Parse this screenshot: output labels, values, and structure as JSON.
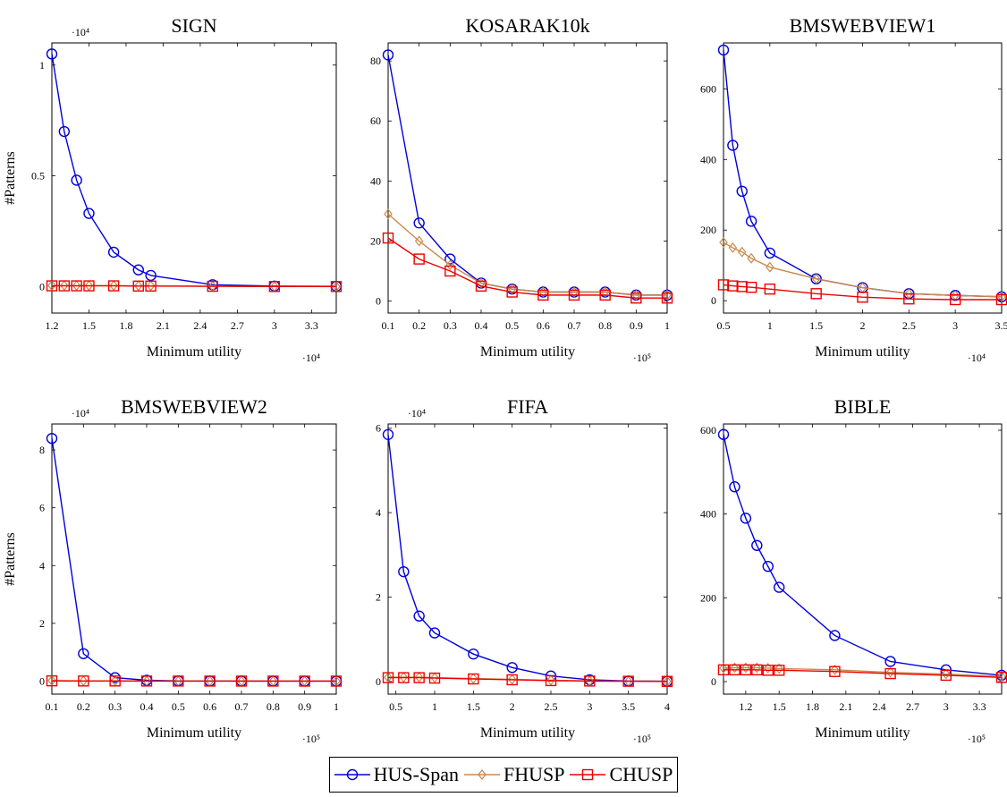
{
  "legend": {
    "items": [
      {
        "name": "HUS-Span",
        "color": "#0000dd",
        "marker": "circle"
      },
      {
        "name": "FHUSP",
        "color": "#c98a4b",
        "marker": "diamond"
      },
      {
        "name": "CHUSP",
        "color": "#ee0000",
        "marker": "square"
      }
    ]
  },
  "chart_data": [
    {
      "type": "line",
      "title": "SIGN",
      "xlabel": "Minimum utility",
      "ylabel": "#Patterns",
      "x_multiplier": "·10⁴",
      "y_multiplier": "·10⁴",
      "xlim": [
        1.2,
        3.5
      ],
      "ylim": [
        -0.12,
        1.1
      ],
      "xticks": [
        1.2,
        1.5,
        1.8,
        2.1,
        2.4,
        2.7,
        3,
        3.3
      ],
      "yticks": [
        0,
        0.5,
        1
      ],
      "series": [
        {
          "name": "HUS-Span",
          "x": [
            1.2,
            1.3,
            1.4,
            1.5,
            1.7,
            1.9,
            2.0,
            2.5,
            3.0,
            3.5
          ],
          "y": [
            1.05,
            0.7,
            0.48,
            0.33,
            0.155,
            0.075,
            0.05,
            0.008,
            0.002,
            0.001
          ]
        },
        {
          "name": "FHUSP",
          "x": [
            1.2,
            1.3,
            1.4,
            1.5,
            1.7,
            1.9,
            2.0,
            2.5,
            3.0,
            3.5
          ],
          "y": [
            0.004,
            0.004,
            0.004,
            0.004,
            0.004,
            0.003,
            0.003,
            0.001,
            0.0,
            0.0
          ]
        },
        {
          "name": "CHUSP",
          "x": [
            1.2,
            1.3,
            1.4,
            1.5,
            1.7,
            1.9,
            2.0,
            2.5,
            3.0,
            3.5
          ],
          "y": [
            0.003,
            0.003,
            0.003,
            0.003,
            0.003,
            0.002,
            0.002,
            0.001,
            0.0,
            0.0
          ]
        }
      ]
    },
    {
      "type": "line",
      "title": "KOSARAK10k",
      "xlabel": "Minimum utility",
      "ylabel": "",
      "x_multiplier": "·10⁵",
      "y_multiplier": "",
      "xlim": [
        0.1,
        1
      ],
      "ylim": [
        -4,
        86
      ],
      "xticks": [
        0.1,
        0.2,
        0.3,
        0.4,
        0.5,
        0.6,
        0.7,
        0.8,
        0.9,
        1
      ],
      "yticks": [
        0,
        20,
        40,
        60,
        80
      ],
      "series": [
        {
          "name": "HUS-Span",
          "x": [
            0.1,
            0.2,
            0.3,
            0.4,
            0.5,
            0.6,
            0.7,
            0.8,
            0.9,
            1.0
          ],
          "y": [
            82,
            26,
            14,
            6,
            4,
            3,
            3,
            3,
            2,
            2
          ]
        },
        {
          "name": "FHUSP",
          "x": [
            0.1,
            0.2,
            0.3,
            0.4,
            0.5,
            0.6,
            0.7,
            0.8,
            0.9,
            1.0
          ],
          "y": [
            29,
            20,
            12,
            6,
            4,
            3,
            3,
            3,
            2,
            2
          ]
        },
        {
          "name": "CHUSP",
          "x": [
            0.1,
            0.2,
            0.3,
            0.4,
            0.5,
            0.6,
            0.7,
            0.8,
            0.9,
            1.0
          ],
          "y": [
            21,
            14,
            10,
            5,
            3,
            2,
            2,
            2,
            1,
            1
          ]
        }
      ]
    },
    {
      "type": "line",
      "title": "BMSWEBVIEW1",
      "xlabel": "Minimum utility",
      "ylabel": "",
      "x_multiplier": "·10⁴",
      "y_multiplier": "",
      "xlim": [
        0.5,
        3.5
      ],
      "ylim": [
        -35,
        730
      ],
      "xticks": [
        0.5,
        1,
        1.5,
        2,
        2.5,
        3,
        3.5
      ],
      "yticks": [
        0,
        200,
        400,
        600
      ],
      "series": [
        {
          "name": "HUS-Span",
          "x": [
            0.5,
            0.6,
            0.7,
            0.8,
            1.0,
            1.5,
            2.0,
            2.5,
            3.0,
            3.5
          ],
          "y": [
            710,
            440,
            310,
            225,
            135,
            62,
            37,
            20,
            15,
            11
          ]
        },
        {
          "name": "FHUSP",
          "x": [
            0.5,
            0.6,
            0.7,
            0.8,
            1.0,
            1.5,
            2.0,
            2.5,
            3.0,
            3.5
          ],
          "y": [
            165,
            150,
            138,
            120,
            95,
            62,
            37,
            20,
            15,
            11
          ]
        },
        {
          "name": "CHUSP",
          "x": [
            0.5,
            0.6,
            0.7,
            0.8,
            1.0,
            1.5,
            2.0,
            2.5,
            3.0,
            3.5
          ],
          "y": [
            45,
            42,
            40,
            38,
            33,
            20,
            10,
            5,
            3,
            3
          ]
        }
      ]
    },
    {
      "type": "line",
      "title": "BMSWEBVIEW2",
      "xlabel": "Minimum utility",
      "ylabel": "#Patterns",
      "x_multiplier": "·10⁵",
      "y_multiplier": "·10⁴",
      "xlim": [
        0.1,
        1
      ],
      "ylim": [
        -0.45,
        8.9
      ],
      "xticks": [
        0.1,
        0.2,
        0.3,
        0.4,
        0.5,
        0.6,
        0.7,
        0.8,
        0.9,
        1
      ],
      "yticks": [
        0,
        2,
        4,
        6,
        8
      ],
      "series": [
        {
          "name": "HUS-Span",
          "x": [
            0.1,
            0.2,
            0.3,
            0.4,
            0.5,
            0.6,
            0.7,
            0.8,
            0.9,
            1.0
          ],
          "y": [
            8.4,
            0.95,
            0.12,
            0.03,
            0.01,
            0.005,
            0.003,
            0.002,
            0.001,
            0.001
          ]
        },
        {
          "name": "FHUSP",
          "x": [
            0.1,
            0.2,
            0.3,
            0.4,
            0.5,
            0.6,
            0.7,
            0.8,
            0.9,
            1.0
          ],
          "y": [
            0.02,
            0.01,
            0.01,
            0.005,
            0.003,
            0.002,
            0.001,
            0.001,
            0.001,
            0.0
          ]
        },
        {
          "name": "CHUSP",
          "x": [
            0.1,
            0.2,
            0.3,
            0.4,
            0.5,
            0.6,
            0.7,
            0.8,
            0.9,
            1.0
          ],
          "y": [
            0.01,
            0.005,
            0.005,
            0.003,
            0.002,
            0.001,
            0.001,
            0.001,
            0.0,
            0.0
          ]
        }
      ]
    },
    {
      "type": "line",
      "title": "FIFA",
      "xlabel": "Minimum utility",
      "ylabel": "",
      "x_multiplier": "·10⁵",
      "y_multiplier": "·10⁴",
      "xlim": [
        0.4,
        4
      ],
      "ylim": [
        -0.3,
        6.1
      ],
      "xticks": [
        0.5,
        1,
        1.5,
        2,
        2.5,
        3,
        3.5,
        4
      ],
      "yticks": [
        0,
        2,
        4,
        6
      ],
      "series": [
        {
          "name": "HUS-Span",
          "x": [
            0.4,
            0.6,
            0.8,
            1.0,
            1.5,
            2.0,
            2.5,
            3.0,
            3.5,
            4.0
          ],
          "y": [
            5.85,
            2.6,
            1.55,
            1.15,
            0.65,
            0.33,
            0.13,
            0.04,
            0.01,
            0.005
          ]
        },
        {
          "name": "FHUSP",
          "x": [
            0.4,
            0.6,
            0.8,
            1.0,
            1.5,
            2.0,
            2.5,
            3.0,
            3.5,
            4.0
          ],
          "y": [
            0.1,
            0.1,
            0.1,
            0.09,
            0.07,
            0.05,
            0.03,
            0.01,
            0.005,
            0.003
          ]
        },
        {
          "name": "CHUSP",
          "x": [
            0.4,
            0.6,
            0.8,
            1.0,
            1.5,
            2.0,
            2.5,
            3.0,
            3.5,
            4.0
          ],
          "y": [
            0.09,
            0.09,
            0.09,
            0.08,
            0.06,
            0.04,
            0.02,
            0.01,
            0.005,
            0.002
          ]
        }
      ]
    },
    {
      "type": "line",
      "title": "BIBLE",
      "xlabel": "Minimum utility",
      "ylabel": "",
      "x_multiplier": "·10⁵",
      "y_multiplier": "",
      "xlim": [
        1.0,
        3.5
      ],
      "ylim": [
        -30,
        615
      ],
      "xticks": [
        1.2,
        1.5,
        1.8,
        2.1,
        2.4,
        2.7,
        3,
        3.3
      ],
      "yticks": [
        0,
        200,
        400,
        600
      ],
      "series": [
        {
          "name": "HUS-Span",
          "x": [
            1.0,
            1.1,
            1.2,
            1.3,
            1.4,
            1.5,
            2.0,
            2.5,
            3.0,
            3.5
          ],
          "y": [
            590,
            465,
            390,
            325,
            275,
            225,
            110,
            48,
            28,
            15
          ]
        },
        {
          "name": "FHUSP",
          "x": [
            1.0,
            1.1,
            1.2,
            1.3,
            1.4,
            1.5,
            2.0,
            2.5,
            3.0,
            3.5
          ],
          "y": [
            32,
            33,
            33,
            33,
            32,
            31,
            28,
            22,
            18,
            12
          ]
        },
        {
          "name": "CHUSP",
          "x": [
            1.0,
            1.1,
            1.2,
            1.3,
            1.4,
            1.5,
            2.0,
            2.5,
            3.0,
            3.5
          ],
          "y": [
            28,
            28,
            28,
            28,
            27,
            27,
            24,
            19,
            15,
            10
          ]
        }
      ]
    }
  ]
}
